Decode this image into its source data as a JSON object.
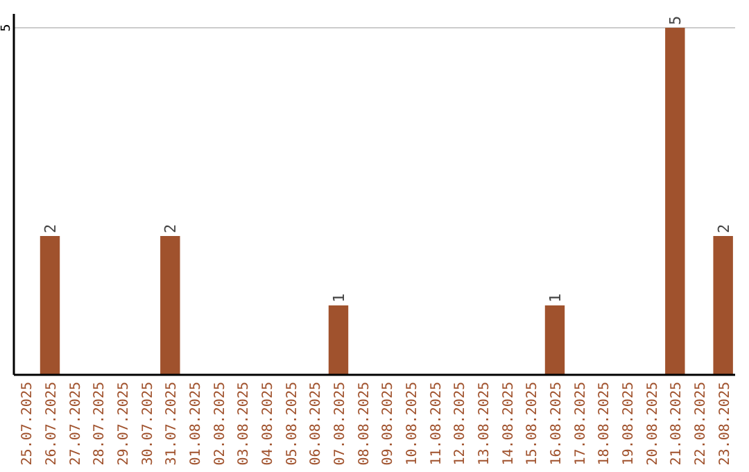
{
  "chart_data": {
    "type": "bar",
    "categories": [
      "25.07.2025",
      "26.07.2025",
      "27.07.2025",
      "28.07.2025",
      "29.07.2025",
      "30.07.2025",
      "31.07.2025",
      "01.08.2025",
      "02.08.2025",
      "03.08.2025",
      "04.08.2025",
      "05.08.2025",
      "06.08.2025",
      "07.08.2025",
      "08.08.2025",
      "09.08.2025",
      "10.08.2025",
      "11.08.2025",
      "12.08.2025",
      "13.08.2025",
      "14.08.2025",
      "15.08.2025",
      "16.08.2025",
      "17.08.2025",
      "18.08.2025",
      "19.08.2025",
      "20.08.2025",
      "21.08.2025",
      "22.08.2025",
      "23.08.2025"
    ],
    "values": [
      0,
      2,
      0,
      0,
      0,
      0,
      2,
      0,
      0,
      0,
      0,
      0,
      0,
      1,
      0,
      0,
      0,
      0,
      0,
      0,
      0,
      0,
      1,
      0,
      0,
      0,
      0,
      5,
      0,
      2
    ],
    "value_labels": [
      null,
      "2",
      null,
      null,
      null,
      null,
      "2",
      null,
      null,
      null,
      null,
      null,
      null,
      "1",
      null,
      null,
      null,
      null,
      null,
      null,
      null,
      null,
      "1",
      null,
      null,
      null,
      null,
      "5",
      null,
      "2"
    ],
    "color": "#a0522d",
    "ylim": [
      0,
      5
    ],
    "yticks": [
      5
    ],
    "ref_lines": [
      {
        "axis": "y",
        "value": 5,
        "color": "#cccccc"
      }
    ]
  }
}
